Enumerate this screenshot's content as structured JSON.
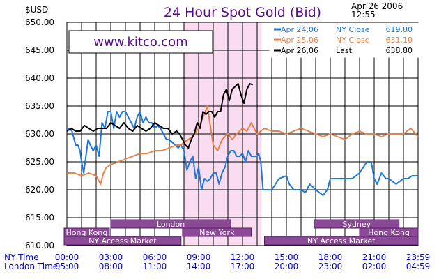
{
  "chart_data": {
    "type": "line",
    "title": "24 Hour Spot Gold (Bid)",
    "date": "Apr 26 2006",
    "time": "12:55",
    "y_unit": "$USD",
    "watermark": "www.kitco.com",
    "ylim": [
      610,
      650
    ],
    "y_ticks": [
      "650.00",
      "645.00",
      "640.00",
      "635.00",
      "630.00",
      "625.00",
      "620.00",
      "615.00",
      "610.00"
    ],
    "x_rows": [
      {
        "label": "NY Time",
        "ticks": [
          "00:00",
          "03:00",
          "06:00",
          "09:00",
          "12:00",
          "15:00",
          "18:00",
          "21:00",
          "23:59"
        ]
      },
      {
        "label": "London Time",
        "ticks": [
          "05:00",
          "08:00",
          "11:00",
          "14:00",
          "17:00",
          "20:00",
          "23:00",
          "02:00",
          "04:59"
        ]
      }
    ],
    "highlight_hours": [
      8.0,
      13.3
    ],
    "grid": true,
    "legend_position": "top-right",
    "legend": [
      {
        "day": "Apr 24,06",
        "label": "NY Close",
        "value": "619.80",
        "color": "#1e78dc"
      },
      {
        "day": "Apr 25,06",
        "label": "NY Close",
        "value": "631.10",
        "color": "#e8824a"
      },
      {
        "day": "Apr 26,06",
        "label": "Last",
        "value": "638.80",
        "color": "#000000"
      }
    ],
    "sessions": [
      {
        "name": "Sydney",
        "row": 1,
        "start": 16.9,
        "end": 22.7
      },
      {
        "name": "London",
        "row": 1,
        "start": 3.0,
        "end": 11.2
      },
      {
        "name": "Hong Kong",
        "row": 2,
        "start": -0.4,
        "end": 2.9
      },
      {
        "name": "New York",
        "row": 2,
        "start": 7.9,
        "end": 12.6
      },
      {
        "name": "Hong Kong",
        "row": 2,
        "start": 20.0,
        "end": 24.0
      },
      {
        "name": "NY Access Market",
        "row": 3,
        "start": -0.4,
        "end": 7.8
      },
      {
        "name": "NY Access Market",
        "row": 3,
        "start": 13.5,
        "end": 24.0
      }
    ],
    "series": [
      {
        "color": "#1e78dc",
        "x": [
          0,
          0.2,
          0.35,
          0.5,
          0.6,
          0.75,
          0.9,
          1.0,
          1.15,
          1.3,
          1.45,
          1.6,
          1.8,
          2.0,
          2.2,
          2.4,
          2.6,
          2.8,
          3.0,
          3.2,
          3.4,
          3.6,
          3.8,
          4.0,
          4.2,
          4.4,
          4.6,
          4.8,
          5.0,
          5.2,
          5.4,
          5.6,
          5.8,
          6.0,
          6.2,
          6.4,
          6.6,
          6.8,
          7.0,
          7.2,
          7.4,
          7.6,
          7.8,
          8.0,
          8.2,
          8.4,
          8.6,
          8.8,
          9.0,
          9.2,
          9.4,
          9.6,
          9.8,
          10.0,
          10.2,
          10.4,
          10.6,
          10.8,
          11.0,
          11.2,
          11.4,
          11.6,
          11.8,
          12.0,
          12.2,
          12.4,
          12.6,
          12.8,
          13.0,
          13.1,
          13.25,
          13.4,
          13.6,
          14.0,
          14.5,
          15.0,
          15.2,
          15.5,
          16.0,
          16.3,
          16.6,
          17.0,
          17.5,
          17.8,
          18.0,
          18.5,
          19.0,
          19.5,
          20.0,
          20.5,
          20.8,
          21.0,
          21.2,
          21.5,
          21.8,
          22.0,
          22.5,
          23.0,
          23.3,
          23.6,
          23.99
        ],
        "y": [
          631,
          631,
          630.5,
          629,
          628,
          628,
          627,
          625,
          623,
          626,
          629,
          628,
          627,
          628,
          626,
          632,
          631,
          634,
          634,
          631,
          634,
          633,
          634,
          634,
          633,
          632,
          631,
          633,
          634,
          632,
          633,
          632,
          632,
          631,
          631.5,
          631,
          630,
          629,
          629,
          628.5,
          628,
          627.5,
          628,
          627,
          623.5,
          625,
          626,
          622,
          624,
          620,
          622,
          621.5,
          622,
          623,
          623,
          621,
          623,
          624,
          626,
          627,
          627,
          626,
          626,
          626.5,
          625,
          627,
          626,
          626,
          626,
          626.5,
          625,
          620,
          620,
          620,
          622,
          622.5,
          621,
          620,
          620,
          619.5,
          621,
          620,
          619,
          620,
          622,
          622,
          622,
          622,
          623,
          625,
          625,
          622,
          621,
          623,
          622,
          622,
          621,
          622,
          622,
          622.5,
          622.5
        ]
      },
      {
        "color": "#e8824a",
        "x": [
          0,
          0.5,
          1.0,
          1.5,
          2.0,
          2.3,
          2.5,
          2.7,
          3.0,
          3.5,
          4.0,
          4.5,
          5.0,
          5.5,
          6.0,
          6.5,
          7.0,
          7.5,
          7.8,
          8.0,
          8.3,
          8.6,
          9.0,
          9.3,
          9.6,
          10.0,
          10.3,
          10.6,
          11.0,
          11.3,
          11.6,
          12.0,
          12.3,
          12.6,
          13.0,
          13.5,
          14.0,
          14.5,
          15.0,
          15.5,
          16.0,
          16.5,
          17.0,
          17.5,
          18.0,
          18.5,
          19.0,
          19.5,
          20.0,
          20.5,
          21.0,
          21.5,
          22.0,
          22.5,
          23.0,
          23.5,
          23.99
        ],
        "y": [
          623,
          623,
          622.5,
          623,
          622.5,
          621,
          623,
          624,
          624.5,
          625,
          625.5,
          626,
          626.5,
          626.5,
          627,
          627,
          627.5,
          628,
          628,
          628.5,
          629,
          629.5,
          631,
          633,
          635,
          628,
          627,
          629,
          630,
          629,
          630,
          631,
          630.5,
          632,
          630,
          631,
          630.5,
          630.5,
          630,
          630.5,
          631,
          630.5,
          630,
          629.5,
          630,
          629.5,
          629,
          630,
          630.5,
          630,
          630,
          629.5,
          630,
          630,
          630,
          631,
          629.5
        ]
      },
      {
        "color": "#000000",
        "x": [
          0,
          0.3,
          0.6,
          0.9,
          1.2,
          1.5,
          1.8,
          2.1,
          2.4,
          2.7,
          3.0,
          3.3,
          3.6,
          3.9,
          4.2,
          4.5,
          4.8,
          5.1,
          5.4,
          5.7,
          6.0,
          6.3,
          6.6,
          6.9,
          7.2,
          7.5,
          7.7,
          7.9,
          8.1,
          8.3,
          8.5,
          8.7,
          8.9,
          9.1,
          9.3,
          9.5,
          9.7,
          9.9,
          10.1,
          10.3,
          10.5,
          10.7,
          10.9,
          11.1,
          11.3,
          11.5,
          11.7,
          11.9,
          12.1,
          12.3,
          12.5,
          12.7
        ],
        "y": [
          630.5,
          631,
          630.5,
          630.5,
          631.5,
          631,
          630.5,
          631,
          631,
          631,
          632,
          631.5,
          631,
          632,
          631,
          630.5,
          631.5,
          631,
          630.5,
          631,
          632,
          631.5,
          631,
          631,
          630,
          630.5,
          630,
          629,
          628,
          627.5,
          629,
          630,
          632,
          631,
          634,
          633.5,
          634,
          634,
          633,
          634,
          634,
          637,
          638,
          636,
          638,
          638.5,
          639,
          637,
          635.5,
          638,
          639,
          638.8
        ]
      }
    ]
  }
}
